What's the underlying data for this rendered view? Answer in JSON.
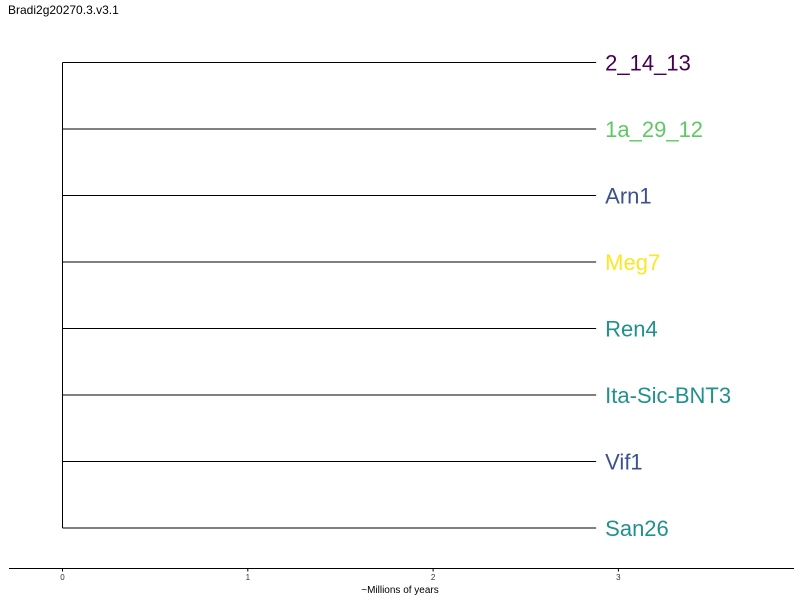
{
  "title": "Bradi2g20270.3.v3.1",
  "tips": [
    {
      "label": "2_14_13",
      "color": "#440154"
    },
    {
      "label": "1a_29_12",
      "color": "#5ec962"
    },
    {
      "label": "Arn1",
      "color": "#3b528b"
    },
    {
      "label": "Meg7",
      "color": "#fde725"
    },
    {
      "label": "Ren4",
      "color": "#21918c"
    },
    {
      "label": "Ita-Sic-BNT3",
      "color": "#21918c"
    },
    {
      "label": "Vif1",
      "color": "#3b528b"
    },
    {
      "label": "San26",
      "color": "#21918c"
    }
  ],
  "branch_length": 2.88,
  "axis": {
    "label": "~Millions of years",
    "ticks": [
      "0",
      "1",
      "2",
      "3"
    ],
    "range": [
      -0.29,
      3.95
    ]
  }
}
